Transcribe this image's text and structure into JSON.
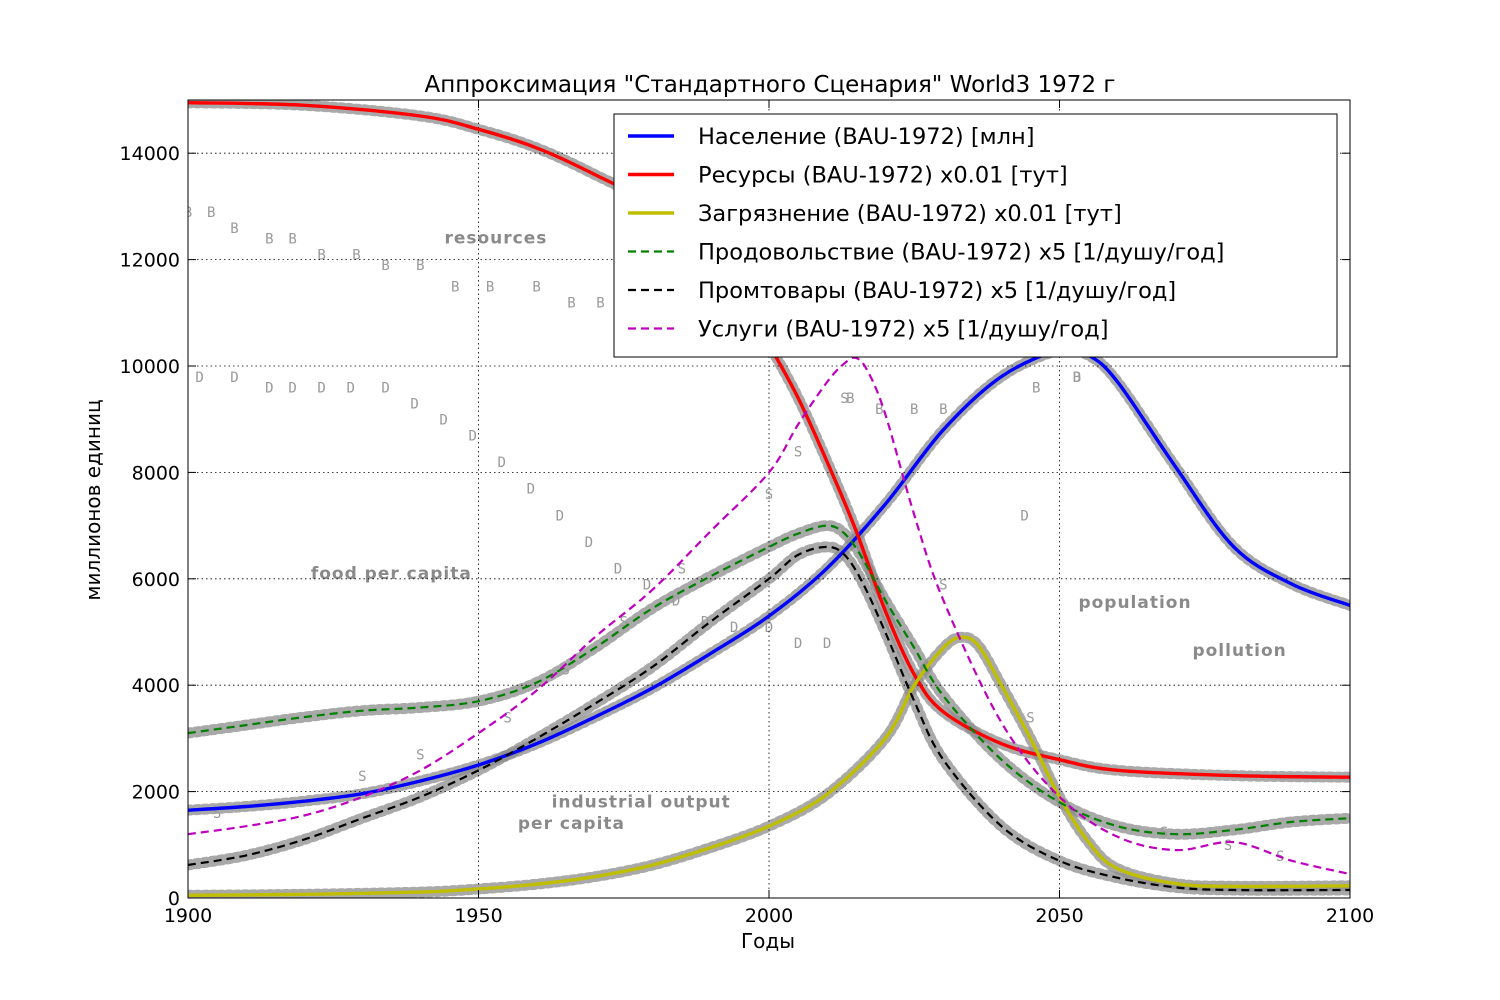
{
  "chart_data": {
    "type": "line",
    "title": "Аппроксимация \"Стандартного Сценария\" World3 1972 г",
    "xlabel": "Годы",
    "ylabel": "миллионов единиц",
    "xlim": [
      1900,
      2100
    ],
    "ylim": [
      0,
      15000
    ],
    "xticks": [
      1900,
      1950,
      2000,
      2050,
      2100
    ],
    "yticks": [
      0,
      2000,
      4000,
      6000,
      8000,
      10000,
      12000,
      14000
    ],
    "grid": true,
    "legend_position": "top-right",
    "series": [
      {
        "name": "Население (BAU-1972) [млн]",
        "color": "#0000ff",
        "style": "solid",
        "x": [
          1900,
          1910,
          1920,
          1930,
          1940,
          1950,
          1960,
          1970,
          1980,
          1990,
          2000,
          2010,
          2020,
          2030,
          2040,
          2050,
          2055,
          2060,
          2070,
          2080,
          2090,
          2100
        ],
        "y": [
          1650,
          1720,
          1820,
          1960,
          2200,
          2500,
          2900,
          3400,
          3950,
          4600,
          5300,
          6200,
          7400,
          8800,
          9800,
          10300,
          10200,
          9700,
          8100,
          6600,
          5900,
          5500
        ]
      },
      {
        "name": "Ресурсы (BAU-1972) x0.01 [тут]",
        "color": "#ff0000",
        "style": "solid",
        "x": [
          1900,
          1920,
          1940,
          1950,
          1960,
          1970,
          1980,
          1990,
          1995,
          2000,
          2005,
          2010,
          2015,
          2020,
          2025,
          2030,
          2040,
          2050,
          2060,
          2080,
          2100
        ],
        "y": [
          14950,
          14900,
          14700,
          14450,
          14100,
          13600,
          13000,
          12000,
          11300,
          10400,
          9400,
          8200,
          6900,
          5400,
          4200,
          3500,
          2900,
          2600,
          2400,
          2300,
          2270
        ]
      },
      {
        "name": "Загрязнение (BAU-1972) x0.01 [тут]",
        "color": "#bfbf00",
        "style": "solid",
        "x": [
          1900,
          1920,
          1940,
          1950,
          1960,
          1970,
          1980,
          1990,
          2000,
          2010,
          2020,
          2025,
          2030,
          2033,
          2036,
          2040,
          2045,
          2050,
          2055,
          2060,
          2070,
          2080,
          2100
        ],
        "y": [
          50,
          70,
          110,
          170,
          260,
          400,
          620,
          950,
          1350,
          1950,
          3000,
          4000,
          4700,
          4900,
          4750,
          4000,
          3000,
          1900,
          1050,
          550,
          270,
          220,
          230
        ]
      },
      {
        "name": "Продовольствие (BAU-1972) x5 [1/душу/год]",
        "color": "#008000",
        "style": "dashed",
        "x": [
          1900,
          1910,
          1920,
          1930,
          1940,
          1950,
          1960,
          1970,
          1980,
          1990,
          2000,
          2005,
          2010,
          2013,
          2016,
          2020,
          2025,
          2030,
          2040,
          2050,
          2060,
          2070,
          2080,
          2090,
          2100
        ],
        "y": [
          3100,
          3250,
          3400,
          3520,
          3580,
          3700,
          4050,
          4700,
          5450,
          6050,
          6600,
          6850,
          7000,
          6850,
          6400,
          5600,
          4700,
          3800,
          2600,
          1800,
          1350,
          1200,
          1280,
          1430,
          1500
        ]
      },
      {
        "name": "Промтовары (BAU-1972) x5 [1/душу/год]",
        "color": "#000000",
        "style": "dashed",
        "x": [
          1900,
          1910,
          1920,
          1930,
          1940,
          1950,
          1960,
          1970,
          1980,
          1990,
          2000,
          2005,
          2010,
          2013,
          2016,
          2020,
          2025,
          2030,
          2040,
          2050,
          2060,
          2070,
          2080,
          2100
        ],
        "y": [
          620,
          800,
          1100,
          1500,
          1900,
          2400,
          3000,
          3650,
          4350,
          5200,
          6000,
          6450,
          6600,
          6450,
          5950,
          5000,
          3700,
          2600,
          1350,
          700,
          380,
          200,
          150,
          150
        ]
      },
      {
        "name": "Услуги (BAU-1972) x5 [1/душу/год]",
        "color": "#bf00bf",
        "style": "dashed",
        "x": [
          1900,
          1910,
          1920,
          1930,
          1940,
          1950,
          1960,
          1970,
          1980,
          1990,
          2000,
          2005,
          2010,
          2013,
          2015,
          2017,
          2020,
          2025,
          2030,
          2040,
          2050,
          2060,
          2070,
          2080,
          2090,
          2100
        ],
        "y": [
          1200,
          1350,
          1550,
          1900,
          2400,
          3100,
          3900,
          4900,
          5800,
          6900,
          8000,
          8900,
          9700,
          10050,
          10150,
          9900,
          9100,
          7200,
          5600,
          3300,
          1900,
          1150,
          900,
          1050,
          700,
          450
        ]
      }
    ],
    "background_annotations": [
      {
        "text": "resources",
        "x": 1953,
        "y": 12300
      },
      {
        "text": "food per capita",
        "x": 1935,
        "y": 6000
      },
      {
        "text": "population",
        "x": 2063,
        "y": 5450
      },
      {
        "text": "pollution",
        "x": 2081,
        "y": 4550
      },
      {
        "text": "industrial output",
        "x": 1978,
        "y": 1700
      },
      {
        "text": "per capita",
        "x": 1966,
        "y": 1300
      }
    ],
    "background_markers": [
      {
        "text": "B",
        "x": 1900,
        "y": 12800
      },
      {
        "text": "B",
        "x": 1904,
        "y": 12800
      },
      {
        "text": "B",
        "x": 1908,
        "y": 12500
      },
      {
        "text": "B",
        "x": 1914,
        "y": 12300
      },
      {
        "text": "B",
        "x": 1918,
        "y": 12300
      },
      {
        "text": "B",
        "x": 1923,
        "y": 12000
      },
      {
        "text": "B",
        "x": 1929,
        "y": 12000
      },
      {
        "text": "B",
        "x": 1934,
        "y": 11800
      },
      {
        "text": "B",
        "x": 1940,
        "y": 11800
      },
      {
        "text": "B",
        "x": 1946,
        "y": 11400
      },
      {
        "text": "B",
        "x": 1952,
        "y": 11400
      },
      {
        "text": "B",
        "x": 1960,
        "y": 11400
      },
      {
        "text": "B",
        "x": 1966,
        "y": 11100
      },
      {
        "text": "B",
        "x": 1971,
        "y": 11100
      },
      {
        "text": "B",
        "x": 1976,
        "y": 11100
      },
      {
        "text": "B",
        "x": 2014,
        "y": 9300
      },
      {
        "text": "B",
        "x": 2019,
        "y": 9100
      },
      {
        "text": "B",
        "x": 2025,
        "y": 9100
      },
      {
        "text": "B",
        "x": 2030,
        "y": 9100
      },
      {
        "text": "B",
        "x": 2046,
        "y": 9500
      },
      {
        "text": "B",
        "x": 2053,
        "y": 9700
      },
      {
        "text": "D",
        "x": 1902,
        "y": 9700
      },
      {
        "text": "D",
        "x": 1908,
        "y": 9700
      },
      {
        "text": "D",
        "x": 1914,
        "y": 9500
      },
      {
        "text": "D",
        "x": 1918,
        "y": 9500
      },
      {
        "text": "D",
        "x": 1923,
        "y": 9500
      },
      {
        "text": "D",
        "x": 1928,
        "y": 9500
      },
      {
        "text": "D",
        "x": 1934,
        "y": 9500
      },
      {
        "text": "D",
        "x": 1939,
        "y": 9200
      },
      {
        "text": "D",
        "x": 1944,
        "y": 8900
      },
      {
        "text": "D",
        "x": 1949,
        "y": 8600
      },
      {
        "text": "D",
        "x": 1954,
        "y": 8100
      },
      {
        "text": "D",
        "x": 1959,
        "y": 7600
      },
      {
        "text": "D",
        "x": 1964,
        "y": 7100
      },
      {
        "text": "D",
        "x": 1969,
        "y": 6600
      },
      {
        "text": "D",
        "x": 1974,
        "y": 6100
      },
      {
        "text": "D",
        "x": 1979,
        "y": 5800
      },
      {
        "text": "D",
        "x": 1984,
        "y": 5500
      },
      {
        "text": "D",
        "x": 1989,
        "y": 5100
      },
      {
        "text": "D",
        "x": 1994,
        "y": 5000
      },
      {
        "text": "D",
        "x": 2000,
        "y": 5000
      },
      {
        "text": "D",
        "x": 2005,
        "y": 4700
      },
      {
        "text": "D",
        "x": 2010,
        "y": 4700
      },
      {
        "text": "D",
        "x": 2044,
        "y": 7100
      },
      {
        "text": "D",
        "x": 2053,
        "y": 9700
      },
      {
        "text": "S",
        "x": 1905,
        "y": 1500
      },
      {
        "text": "S",
        "x": 1930,
        "y": 2200
      },
      {
        "text": "S",
        "x": 1940,
        "y": 2600
      },
      {
        "text": "S",
        "x": 1955,
        "y": 3300
      },
      {
        "text": "S",
        "x": 1965,
        "y": 4200
      },
      {
        "text": "S",
        "x": 1975,
        "y": 5100
      },
      {
        "text": "S",
        "x": 1985,
        "y": 6100
      },
      {
        "text": "S",
        "x": 2000,
        "y": 7500
      },
      {
        "text": "S",
        "x": 2005,
        "y": 8300
      },
      {
        "text": "S",
        "x": 2013,
        "y": 9300
      },
      {
        "text": "S",
        "x": 2030,
        "y": 5800
      },
      {
        "text": "S",
        "x": 2045,
        "y": 3300
      },
      {
        "text": "S",
        "x": 2068,
        "y": 1150
      },
      {
        "text": "S",
        "x": 2079,
        "y": 900
      },
      {
        "text": "S",
        "x": 2088,
        "y": 700
      }
    ]
  }
}
